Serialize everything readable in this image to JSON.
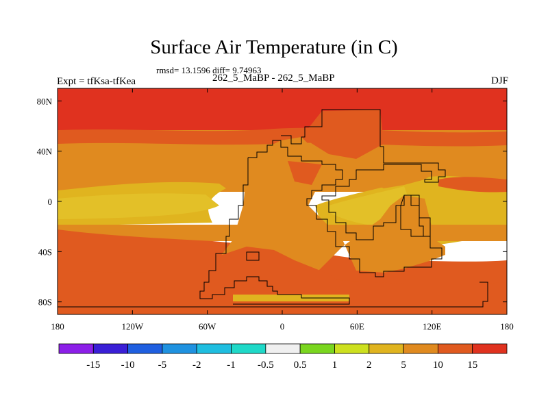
{
  "header": {
    "title": "Surface Air Temperature (in C)",
    "stats": "rmsd= 13.1596 diff= 9.74963",
    "experiment": "Expt = tfKsa-tfKea",
    "subtitle": "262_5_MaBP - 262_5_MaBP",
    "season": "DJF"
  },
  "chart_data": {
    "type": "heatmap",
    "title": "Surface Air Temperature (in C)",
    "xlabel": "",
    "ylabel": "",
    "xlim": [
      -180,
      180
    ],
    "ylim": [
      -90,
      90
    ],
    "x_ticks": [
      {
        "value": -180,
        "label": "180"
      },
      {
        "value": -120,
        "label": "120W"
      },
      {
        "value": -60,
        "label": "60W"
      },
      {
        "value": 0,
        "label": "0"
      },
      {
        "value": 60,
        "label": "60E"
      },
      {
        "value": 120,
        "label": "120E"
      },
      {
        "value": 180,
        "label": "180"
      }
    ],
    "y_ticks": [
      {
        "value": 80,
        "label": "80N"
      },
      {
        "value": 40,
        "label": "40N"
      },
      {
        "value": 0,
        "label": "0"
      },
      {
        "value": -40,
        "label": "40S"
      },
      {
        "value": -80,
        "label": "80S"
      }
    ],
    "colorbar": {
      "labels": [
        "-15",
        "-10",
        "-5",
        "-2",
        "-1",
        "-0.5",
        "0.5",
        "1",
        "2",
        "5",
        "10",
        "15"
      ],
      "colors": [
        "#8c1fe8",
        "#3a1fd6",
        "#1f5fe0",
        "#1f92e0",
        "#1fbee0",
        "#1fd9c8",
        "#f0f0f0",
        "#7ad61f",
        "#cde01f",
        "#e0b41f",
        "#e08a1f",
        "#e05a1f",
        "#e0321f"
      ]
    },
    "zonal_bands": [
      {
        "lat_from": 90,
        "lat_to": 62,
        "value": 20
      },
      {
        "lat_from": 62,
        "lat_to": 50,
        "value": 12
      },
      {
        "lat_from": 50,
        "lat_to": 12,
        "value": 8
      },
      {
        "lat_from": 12,
        "lat_to": -25,
        "value": 4
      },
      {
        "lat_from": -25,
        "lat_to": -40,
        "value": 8
      },
      {
        "lat_from": -40,
        "lat_to": -90,
        "value": 12
      }
    ],
    "grid": false
  }
}
